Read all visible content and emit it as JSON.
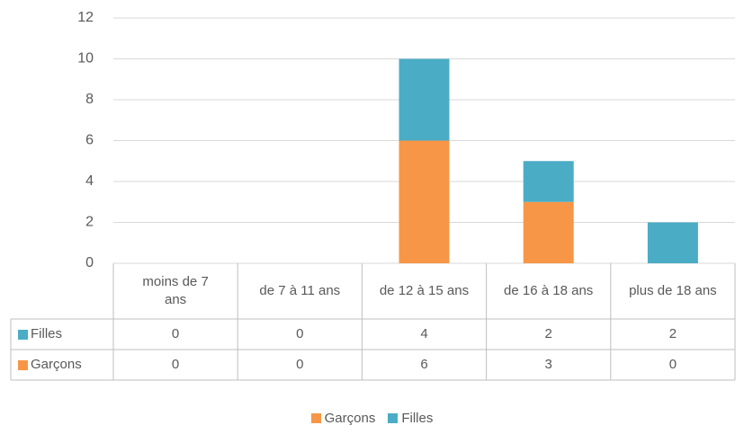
{
  "chart_data": {
    "type": "stacked_bar",
    "categories": [
      "moins de 7 ans",
      "de 7 à 11 ans",
      "de 12 à 15 ans",
      "de 16 à 18 ans",
      "plus de 18 ans"
    ],
    "series": [
      {
        "name": "Garçons",
        "color": "#f79646",
        "values": [
          0,
          0,
          6,
          3,
          0
        ]
      },
      {
        "name": "Filles",
        "color": "#4bacc6",
        "values": [
          0,
          0,
          4,
          2,
          2
        ]
      }
    ],
    "ylim": [
      0,
      12
    ],
    "yticks": [
      0,
      2,
      4,
      6,
      8,
      10,
      12
    ],
    "grid": true,
    "legend": "bottom",
    "data_table": true
  }
}
